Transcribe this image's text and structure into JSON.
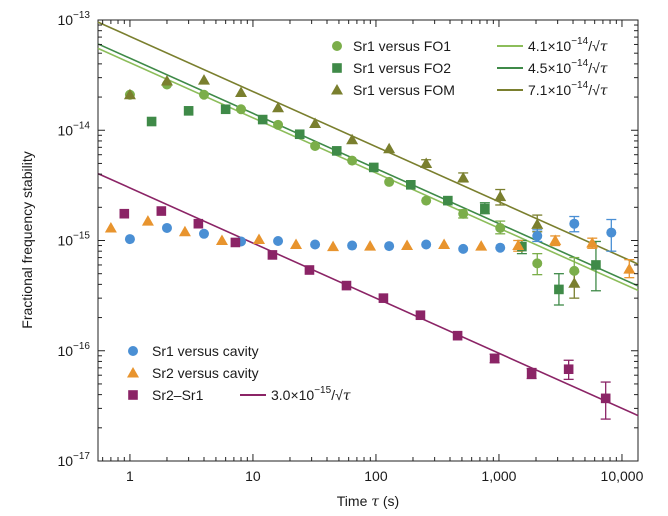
{
  "chart_data": {
    "type": "scatter",
    "x_scale": "log",
    "y_scale": "log",
    "xlabel_prefix": "Time ",
    "xlabel_symbol": "τ",
    "xlabel_suffix": " (s)",
    "ylabel": "Fractional frequency stability",
    "xlim": [
      0.55,
      13500
    ],
    "ylim": [
      1e-17,
      1e-13
    ],
    "x_ticks": [
      {
        "value": 1,
        "label": "1"
      },
      {
        "value": 10,
        "label": "10"
      },
      {
        "value": 100,
        "label": "100"
      },
      {
        "value": 1000,
        "label": "1,000"
      },
      {
        "value": 10000,
        "label": "10,000"
      }
    ],
    "y_ticks": [
      {
        "value": 1e-13,
        "base": "10",
        "exp": "−13"
      },
      {
        "value": 1e-14,
        "base": "10",
        "exp": "−14"
      },
      {
        "value": 1e-15,
        "base": "10",
        "exp": "−15"
      },
      {
        "value": 1e-16,
        "base": "10",
        "exp": "−16"
      },
      {
        "value": 1e-17,
        "base": "10",
        "exp": "−17"
      }
    ],
    "series": [
      {
        "name": "Sr1 versus FO1",
        "color": "#7bae4a",
        "marker": "circle",
        "points": [
          {
            "x": 1,
            "y": 2.1e-14
          },
          {
            "x": 2,
            "y": 2.6e-14
          },
          {
            "x": 4,
            "y": 2.1e-14
          },
          {
            "x": 8,
            "y": 1.55e-14
          },
          {
            "x": 16,
            "y": 1.12e-14
          },
          {
            "x": 32,
            "y": 7.2e-15
          },
          {
            "x": 64,
            "y": 5.3e-15
          },
          {
            "x": 128,
            "y": 3.4e-15
          },
          {
            "x": 256,
            "y": 2.3e-15
          },
          {
            "x": 512,
            "y": 1.75e-15,
            "err": [
              1.6e-15,
              1.9e-15
            ]
          },
          {
            "x": 1024,
            "y": 1.3e-15,
            "err": [
              1.15e-15,
              1.5e-15
            ]
          },
          {
            "x": 2048,
            "y": 6.2e-16,
            "err": [
              4.9e-16,
              7.6e-16
            ]
          },
          {
            "x": 4096,
            "y": 5.3e-16,
            "err": [
              3.8e-16,
              7e-16
            ]
          }
        ]
      },
      {
        "name": "Sr1 versus FO2",
        "color": "#3f8a48",
        "marker": "square",
        "points": [
          {
            "x": 1.5,
            "y": 1.2e-14
          },
          {
            "x": 3,
            "y": 1.5e-14
          },
          {
            "x": 6,
            "y": 1.55e-14
          },
          {
            "x": 12,
            "y": 1.25e-14
          },
          {
            "x": 24,
            "y": 9.2e-15
          },
          {
            "x": 48,
            "y": 6.5e-15
          },
          {
            "x": 96,
            "y": 4.6e-15
          },
          {
            "x": 192,
            "y": 3.2e-15
          },
          {
            "x": 384,
            "y": 2.3e-15
          },
          {
            "x": 768,
            "y": 1.95e-15,
            "err": [
              1.75e-15,
              2.2e-15
            ]
          },
          {
            "x": 1536,
            "y": 8.8e-16,
            "err": [
              7.6e-16,
              1e-15
            ]
          },
          {
            "x": 3072,
            "y": 3.6e-16,
            "err": [
              2.6e-16,
              5e-16
            ]
          },
          {
            "x": 6144,
            "y": 6e-16,
            "err": [
              3.5e-16,
              9.8e-16
            ]
          }
        ]
      },
      {
        "name": "Sr1 versus FOM",
        "color": "#7a7f2e",
        "marker": "triangle",
        "points": [
          {
            "x": 1,
            "y": 2.1e-14
          },
          {
            "x": 2,
            "y": 2.8e-14
          },
          {
            "x": 4,
            "y": 2.85e-14
          },
          {
            "x": 8,
            "y": 2.2e-14
          },
          {
            "x": 16,
            "y": 1.6e-14
          },
          {
            "x": 32,
            "y": 1.15e-14
          },
          {
            "x": 64,
            "y": 8.2e-15
          },
          {
            "x": 128,
            "y": 6.8e-15
          },
          {
            "x": 256,
            "y": 5e-15,
            "err": [
              4.7e-15,
              5.4e-15
            ]
          },
          {
            "x": 512,
            "y": 3.7e-15,
            "err": [
              3.4e-15,
              4.1e-15
            ]
          },
          {
            "x": 1024,
            "y": 2.5e-15,
            "err": [
              2.1e-15,
              2.9e-15
            ]
          },
          {
            "x": 2048,
            "y": 1.4e-15,
            "err": [
              1.2e-15,
              1.7e-15
            ]
          },
          {
            "x": 4096,
            "y": 4.1e-16,
            "err": [
              3e-16,
              5.2e-16
            ]
          }
        ]
      },
      {
        "name": "Sr1 versus cavity",
        "color": "#4a8fd4",
        "marker": "circle",
        "points": [
          {
            "x": 1,
            "y": 1.03e-15
          },
          {
            "x": 2,
            "y": 1.3e-15
          },
          {
            "x": 4,
            "y": 1.15e-15
          },
          {
            "x": 8,
            "y": 9.8e-16
          },
          {
            "x": 16,
            "y": 9.9e-16
          },
          {
            "x": 32,
            "y": 9.2e-16
          },
          {
            "x": 64,
            "y": 9e-16
          },
          {
            "x": 128,
            "y": 8.9e-16
          },
          {
            "x": 256,
            "y": 9.2e-16
          },
          {
            "x": 512,
            "y": 8.4e-16
          },
          {
            "x": 1024,
            "y": 8.6e-16
          },
          {
            "x": 2048,
            "y": 1.1e-15,
            "err": [
              9.8e-16,
              1.25e-15
            ]
          },
          {
            "x": 4096,
            "y": 1.42e-15,
            "err": [
              1.2e-15,
              1.65e-15
            ]
          },
          {
            "x": 8192,
            "y": 1.18e-15,
            "err": [
              8e-16,
              1.55e-15
            ]
          }
        ]
      },
      {
        "name": "Sr2 versus cavity",
        "color": "#e8942e",
        "marker": "triangle",
        "points": [
          {
            "x": 0.7,
            "y": 1.3e-15
          },
          {
            "x": 1.4,
            "y": 1.5e-15
          },
          {
            "x": 2.8,
            "y": 1.2e-15
          },
          {
            "x": 5.6,
            "y": 1e-15
          },
          {
            "x": 11.2,
            "y": 1.02e-15
          },
          {
            "x": 22.4,
            "y": 9.2e-16
          },
          {
            "x": 44.8,
            "y": 8.8e-16
          },
          {
            "x": 89.6,
            "y": 8.9e-16
          },
          {
            "x": 179,
            "y": 9e-16
          },
          {
            "x": 358,
            "y": 9.2e-16
          },
          {
            "x": 717,
            "y": 8.9e-16
          },
          {
            "x": 1434,
            "y": 9e-16,
            "err": [
              8e-16,
              1e-15
            ]
          },
          {
            "x": 2867,
            "y": 1e-15,
            "err": [
              9e-16,
              1.1e-15
            ]
          },
          {
            "x": 5734,
            "y": 9.5e-16,
            "err": [
              8.5e-16,
              1.05e-15
            ]
          },
          {
            "x": 11469,
            "y": 5.5e-16,
            "err": [
              4.6e-16,
              6.7e-16
            ]
          }
        ]
      },
      {
        "name": "Sr2–Sr1",
        "color": "#8b2466",
        "marker": "square",
        "points": [
          {
            "x": 0.9,
            "y": 1.75e-15
          },
          {
            "x": 1.8,
            "y": 1.85e-15
          },
          {
            "x": 3.6,
            "y": 1.42e-15
          },
          {
            "x": 7.2,
            "y": 9.6e-16
          },
          {
            "x": 14.4,
            "y": 7.4e-16
          },
          {
            "x": 28.8,
            "y": 5.4e-16
          },
          {
            "x": 57.6,
            "y": 3.9e-16
          },
          {
            "x": 115,
            "y": 3e-16
          },
          {
            "x": 230,
            "y": 2.1e-16
          },
          {
            "x": 461,
            "y": 1.37e-16
          },
          {
            "x": 922,
            "y": 8.5e-17,
            "err": [
              7.8e-17,
              9.3e-17
            ]
          },
          {
            "x": 1843,
            "y": 6.2e-17,
            "err": [
              5.6e-17,
              6.9e-17
            ]
          },
          {
            "x": 3686,
            "y": 6.8e-17,
            "err": [
              5.5e-17,
              8.2e-17
            ]
          },
          {
            "x": 7373,
            "y": 3.7e-17,
            "err": [
              2.4e-17,
              5.2e-17
            ]
          }
        ]
      }
    ],
    "fits": [
      {
        "name": "4.1×10⁻¹⁴/√τ",
        "coef_label": "4.1×10",
        "exp_label": "−14",
        "coef": 4.1e-14,
        "color": "#8cbd5a"
      },
      {
        "name": "4.5×10⁻¹⁴/√τ",
        "coef_label": "4.5×10",
        "exp_label": "−14",
        "coef": 4.5e-14,
        "color": "#3f8a48"
      },
      {
        "name": "7.1×10⁻¹⁴/√τ",
        "coef_label": "7.1×10",
        "exp_label": "−14",
        "coef": 7.1e-14,
        "color": "#7a7f2e"
      },
      {
        "name": "3.0×10⁻¹⁵/√τ",
        "coef_label": "3.0×10",
        "exp_label": "−15",
        "coef": 3e-15,
        "color": "#8b2466"
      }
    ],
    "fit_denominator": "τ",
    "legend_top": {
      "placement": "top-right",
      "series": [
        0,
        1,
        2
      ],
      "fits": [
        0,
        1,
        2
      ]
    },
    "legend_bottom": {
      "placement": "bottom-left",
      "series": [
        3,
        4,
        5
      ],
      "fits": [
        3
      ]
    }
  }
}
